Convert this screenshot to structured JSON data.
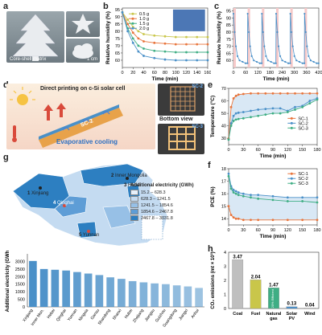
{
  "panel_labels": {
    "a": "a",
    "b": "b",
    "c": "c",
    "d": "d",
    "e": "e",
    "f": "f",
    "g": "g",
    "h": "h"
  },
  "panel_a": {
    "caption": "Core-shell matrix",
    "scale": "1 cm"
  },
  "panel_d": {
    "title": "Direct printing on c-Si solar cell",
    "evap": "Evaporative cooling",
    "sc2": "SC-2",
    "sc3": "SC-3",
    "bottom_view": "Bottom view",
    "p_out": "P",
    "p_in": "P"
  },
  "colors": {
    "orange": "#e8743b",
    "blue": "#4a90c8",
    "green": "#3fae84",
    "yellow": "#c9c64a",
    "red_band": "#f6c9c9",
    "band": "#bfd9ef",
    "map_dark": "#2d7fc1",
    "map_light": "#cfe3f5"
  },
  "chart_data": [
    {
      "id": "b",
      "type": "line",
      "xlabel": "Time (min)",
      "ylabel": "Relative humidity (%)",
      "xlim": [
        0,
        160
      ],
      "ylim": [
        55,
        96
      ],
      "xticks": [
        0,
        20,
        40,
        60,
        80,
        100,
        120,
        140,
        160
      ],
      "yticks": [
        60,
        65,
        70,
        75,
        80,
        85,
        90,
        95
      ],
      "x": [
        0,
        10,
        20,
        30,
        40,
        60,
        80,
        100,
        120,
        140,
        160
      ],
      "series": [
        {
          "name": "0.5 g",
          "color": "#c9c64a",
          "values": [
            93,
            88,
            83,
            80,
            78,
            77,
            76.5,
            76,
            76,
            76,
            76
          ]
        },
        {
          "name": "1.0 g",
          "color": "#e8743b",
          "values": [
            93,
            85,
            79,
            75,
            73,
            72,
            71.5,
            71,
            71,
            71,
            71
          ]
        },
        {
          "name": "1.5 g",
          "color": "#3fae84",
          "values": [
            93,
            82,
            75,
            70,
            68,
            66.5,
            66,
            65.5,
            65.5,
            65.5,
            65.5
          ]
        },
        {
          "name": "2.0 g",
          "color": "#4a90c8",
          "values": [
            93,
            80,
            72,
            66,
            63,
            61.5,
            60.5,
            60,
            60,
            60,
            60
          ]
        }
      ]
    },
    {
      "id": "c",
      "type": "line",
      "xlabel": "Time (min)",
      "ylabel": "Relative humidity (%)",
      "xlim": [
        0,
        420
      ],
      "ylim": [
        55,
        97
      ],
      "xticks": [
        0,
        60,
        120,
        180,
        240,
        300,
        360,
        420
      ],
      "yticks": [
        60,
        65,
        70,
        75,
        80,
        85,
        90,
        95
      ],
      "cycles": 6,
      "high": 93,
      "low": 58,
      "cycle_length": 70
    },
    {
      "id": "e",
      "type": "line",
      "xlabel": "Time (min)",
      "ylabel": "Temperature (°C)",
      "xlim": [
        0,
        180
      ],
      "ylim": [
        25,
        70
      ],
      "xticks": [
        0,
        30,
        60,
        90,
        120,
        150,
        180
      ],
      "yticks": [
        30,
        40,
        50,
        60,
        70
      ],
      "series": [
        {
          "name": "SC-1",
          "color": "#e8743b",
          "x": [
            0,
            5,
            10,
            15,
            20,
            30,
            45,
            60,
            75,
            90,
            105,
            120,
            135,
            150,
            165,
            180
          ],
          "values": [
            30,
            55,
            62,
            64,
            65,
            65.5,
            66,
            66,
            66,
            66,
            66,
            66,
            66,
            66,
            66,
            66
          ]
        },
        {
          "name": "SC-2",
          "color": "#4a90c8",
          "x": [
            0,
            5,
            10,
            15,
            20,
            30,
            45,
            60,
            75,
            90,
            105,
            120,
            135,
            150,
            165,
            180
          ],
          "values": [
            29,
            42,
            48,
            50,
            50.5,
            51,
            52,
            53,
            53.5,
            54,
            54,
            52,
            55,
            56,
            60,
            62
          ]
        },
        {
          "name": "SC-3",
          "color": "#3fae84",
          "x": [
            0,
            5,
            10,
            15,
            20,
            30,
            45,
            60,
            75,
            90,
            105,
            120,
            135,
            150,
            165,
            180
          ],
          "values": [
            29,
            40,
            44,
            45,
            45.5,
            46,
            47,
            48,
            49,
            50,
            50,
            51,
            53,
            55,
            58,
            61
          ]
        }
      ]
    },
    {
      "id": "f",
      "type": "line",
      "xlabel": "Time (min)",
      "ylabel": "PCE (%)",
      "xlim": [
        0,
        180
      ],
      "ylim": [
        13.5,
        18
      ],
      "xticks": [
        0,
        30,
        60,
        90,
        120,
        150,
        180
      ],
      "yticks": [
        14,
        15,
        16,
        17,
        18
      ],
      "series": [
        {
          "name": "SC-1",
          "color": "#e8743b",
          "x": [
            0,
            5,
            10,
            15,
            20,
            30,
            45,
            60,
            90,
            120,
            150,
            180
          ],
          "values": [
            15,
            14.3,
            14.1,
            14.0,
            14.0,
            13.9,
            13.9,
            13.9,
            13.9,
            13.9,
            13.9,
            13.9
          ]
        },
        {
          "name": "SC-2",
          "color": "#4a90c8",
          "x": [
            0,
            5,
            10,
            15,
            20,
            30,
            45,
            60,
            90,
            120,
            150,
            180
          ],
          "values": [
            17.6,
            16.6,
            16.3,
            16.2,
            16.1,
            16.0,
            15.9,
            15.9,
            15.8,
            15.7,
            15.7,
            15.7
          ]
        },
        {
          "name": "SC-3",
          "color": "#3fae84",
          "x": [
            0,
            5,
            10,
            15,
            20,
            30,
            45,
            60,
            90,
            120,
            150,
            180
          ],
          "values": [
            17.4,
            16.4,
            16.1,
            16.0,
            15.9,
            15.8,
            15.7,
            15.6,
            15.5,
            15.4,
            15.4,
            15.3
          ]
        }
      ]
    },
    {
      "id": "g-bar",
      "type": "bar",
      "ylabel": "Additional electricity (GWh)",
      "ylim": [
        0,
        3500
      ],
      "yticks": [
        0,
        500,
        1000,
        1500,
        2000,
        2500,
        3000
      ],
      "categories": [
        "Xinjiang",
        "Inner Mongolia",
        "Hebei",
        "Qinghai",
        "Yunnan",
        "Ningxia",
        "Gansu",
        "Shandong",
        "Shanxi",
        "Hubei",
        "Zhejiang",
        "Jiangsu",
        "Guizhou",
        "Guangdong",
        "Jiangxi",
        "Anhui"
      ],
      "display_categories": [
        "Xinjiang",
        "Inner Mon.",
        "Hebei",
        "Qinghai",
        "Yunnan",
        "Ningxia",
        "Gansu",
        "Shandong",
        "Shanxi",
        "Hubei",
        "Zhejiang",
        "Jiangsu",
        "Guizhou",
        "Guangdong",
        "Jiangxi",
        "Anhui"
      ],
      "values": [
        3031,
        2500,
        2450,
        2400,
        2300,
        2200,
        2100,
        1950,
        1850,
        1700,
        1620,
        1550,
        1500,
        1420,
        1350,
        1250
      ]
    },
    {
      "id": "h",
      "type": "bar",
      "ylabel": "CO₂ emissions (mt × 10³)",
      "ylim": [
        0,
        4
      ],
      "yticks": [
        0,
        1,
        2,
        3,
        4
      ],
      "categories": [
        "Coal",
        "Fuel",
        "Natural gas",
        "Solar PV",
        "Wind"
      ],
      "values": [
        3.47,
        2.04,
        1.47,
        0.13,
        0.04
      ],
      "labels": [
        "3.47",
        "2.04",
        "1.47",
        "0.13",
        "0.04"
      ],
      "colors": [
        "#bfbfbf",
        "#c9c64a",
        "#3fae84",
        "#4a90c8",
        "#dddddd"
      ],
      "annotation": "20% Efficient"
    }
  ],
  "map": {
    "legend_title": "Additional electricity (GWh)",
    "legend": [
      {
        "range": "15.2 – 628.3",
        "color": "#e6f0fa"
      },
      {
        "range": "628.3 – 1241.5",
        "color": "#c4dbf1"
      },
      {
        "range": "1241.5 – 1854.6",
        "color": "#97c0e6"
      },
      {
        "range": "1854.6 – 2467.8",
        "color": "#5e9dd6"
      },
      {
        "range": "2467.8 – 3031.8",
        "color": "#2d7fc1"
      }
    ],
    "labels": [
      {
        "num": "1",
        "name": "Xinjiang"
      },
      {
        "num": "2",
        "name": "Inner Mongolia"
      },
      {
        "num": "3",
        "name": "Hebei"
      },
      {
        "num": "4",
        "name": "Qinghai"
      },
      {
        "num": "5",
        "name": "Yunnan"
      }
    ]
  }
}
